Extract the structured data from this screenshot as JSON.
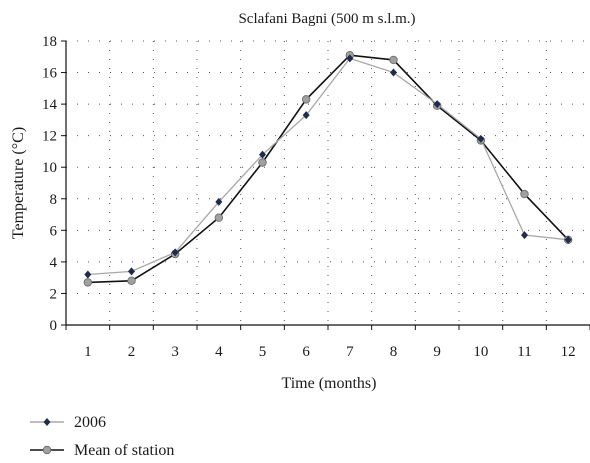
{
  "chart_data": {
    "type": "line",
    "title": "Sclafani Bagni (500 m s.l.m.)",
    "xlabel": "Time (months)",
    "ylabel": "Temperature (°C)",
    "categories": [
      "1",
      "2",
      "3",
      "4",
      "5",
      "6",
      "7",
      "8",
      "9",
      "10",
      "11",
      "12"
    ],
    "ylim": [
      0,
      18
    ],
    "yticks": [
      "0",
      "2",
      "4",
      "6",
      "8",
      "10",
      "12",
      "14",
      "16",
      "18"
    ],
    "grid": "dotted",
    "legend_position": "bottom-left",
    "series": [
      {
        "name": "2006",
        "marker": "diamond",
        "line_color": "#a8a8a8",
        "marker_color": "#1f2d4d",
        "values": [
          3.2,
          3.4,
          4.6,
          7.8,
          10.8,
          13.3,
          16.9,
          16.0,
          14.0,
          11.8,
          5.7,
          5.4
        ]
      },
      {
        "name": "Mean of station",
        "marker": "circle",
        "line_color": "#111111",
        "marker_color": "#a0a0a0",
        "values": [
          2.7,
          2.8,
          4.5,
          6.8,
          10.3,
          14.3,
          17.1,
          16.8,
          13.9,
          11.7,
          8.3,
          5.4
        ]
      }
    ]
  }
}
